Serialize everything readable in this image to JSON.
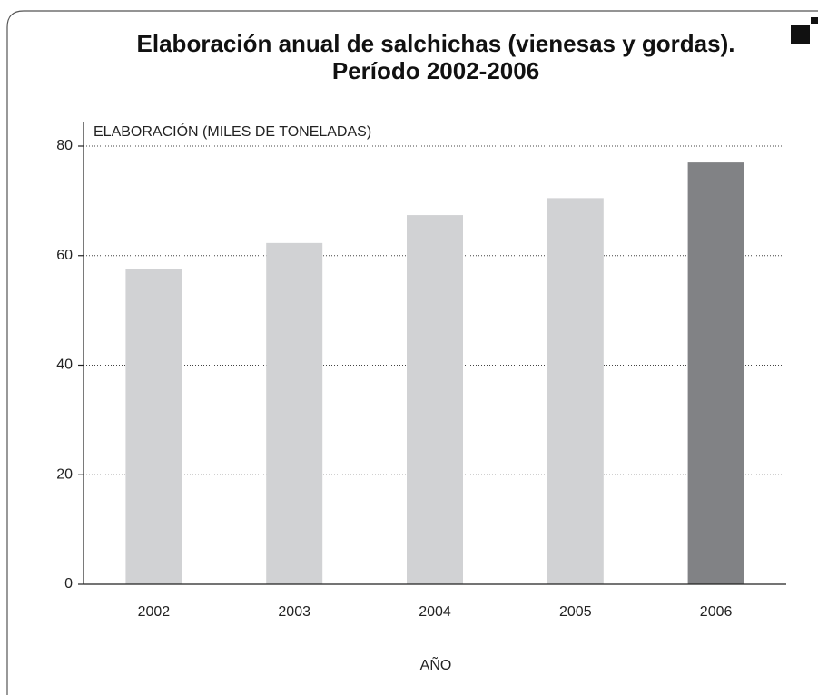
{
  "chart_data": {
    "type": "bar",
    "title": [
      "Elaboración anual de salchichas (vienesas y gordas).",
      "Período 2002-2006"
    ],
    "y_label": "ELABORACIÓN (MILES DE TONELADAS)",
    "x_label": "AÑO",
    "categories": [
      "2002",
      "2003",
      "2004",
      "2005",
      "2006"
    ],
    "values": [
      57.6,
      62.3,
      67.4,
      70.5,
      77.0
    ],
    "colors": [
      "#d1d2d4",
      "#d1d2d4",
      "#d1d2d4",
      "#d1d2d4",
      "#818285"
    ],
    "ylim": [
      0,
      80
    ],
    "yticks": [
      0,
      20,
      40,
      60,
      80
    ],
    "grid": true
  }
}
